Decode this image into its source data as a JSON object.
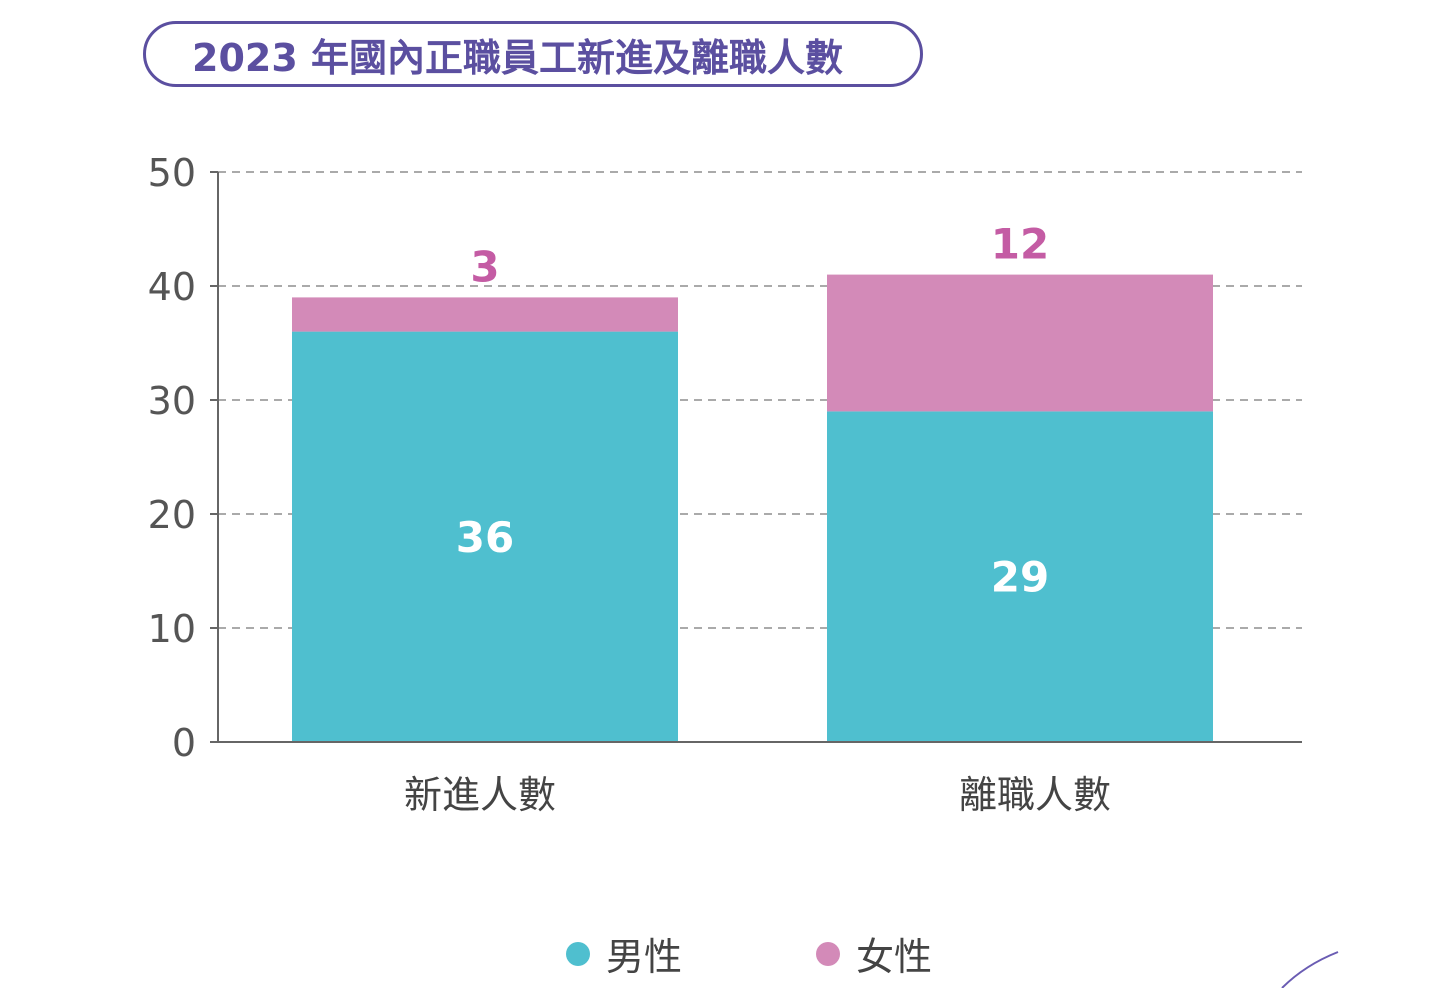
{
  "chart_data": {
    "type": "bar",
    "stacked": true,
    "title": "2023 年國內正職員工新進及離職人數",
    "categories": [
      "新進人數",
      "離職人數"
    ],
    "series": [
      {
        "name": "男性",
        "values": [
          36,
          29
        ],
        "color": "#4fbfcf"
      },
      {
        "name": "女性",
        "values": [
          3,
          12
        ],
        "color": "#d38ab8"
      }
    ],
    "ylim": [
      0,
      50
    ],
    "yticks": [
      0,
      10,
      20,
      30,
      40,
      50
    ],
    "grid": true,
    "legend_position": "bottom-center"
  }
}
